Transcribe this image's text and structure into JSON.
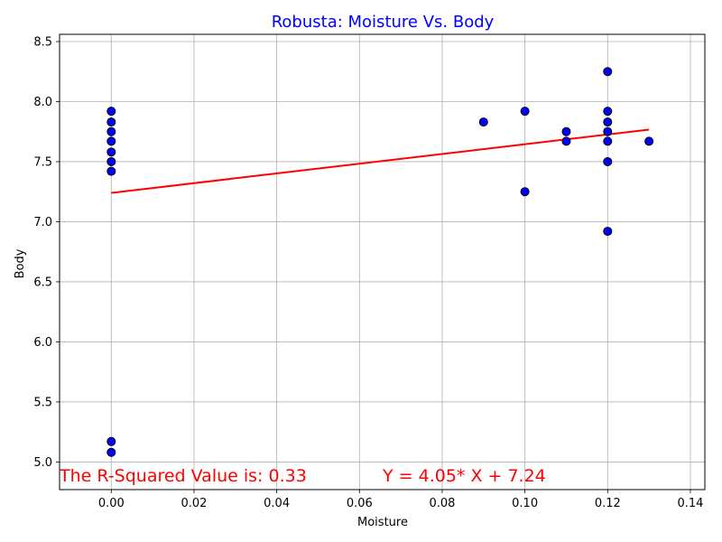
{
  "chart_data": {
    "type": "scatter",
    "title": "Robusta: Moisture Vs. Body",
    "title_color": "#0000ff",
    "xlabel": "Moisture",
    "ylabel": "Body",
    "xlim": [
      -0.0125,
      0.1435
    ],
    "ylim": [
      4.77,
      8.56
    ],
    "x_ticks": [
      0.0,
      0.02,
      0.04,
      0.06,
      0.08,
      0.1,
      0.12,
      0.14
    ],
    "x_tick_labels": [
      "0.00",
      "0.02",
      "0.04",
      "0.06",
      "0.08",
      "0.10",
      "0.12",
      "0.14"
    ],
    "y_ticks": [
      5.0,
      5.5,
      6.0,
      6.5,
      7.0,
      7.5,
      8.0,
      8.5
    ],
    "y_tick_labels": [
      "5.0",
      "5.5",
      "6.0",
      "6.5",
      "7.0",
      "7.5",
      "8.0",
      "8.5"
    ],
    "grid": true,
    "point_color": "#0000ff",
    "point_edge_color": "#000000",
    "points": [
      {
        "x": 0.0,
        "y": 7.92
      },
      {
        "x": 0.0,
        "y": 7.83
      },
      {
        "x": 0.0,
        "y": 7.75
      },
      {
        "x": 0.0,
        "y": 7.67
      },
      {
        "x": 0.0,
        "y": 7.58
      },
      {
        "x": 0.0,
        "y": 7.5
      },
      {
        "x": 0.0,
        "y": 7.42
      },
      {
        "x": 0.0,
        "y": 5.17
      },
      {
        "x": 0.0,
        "y": 5.08
      },
      {
        "x": 0.09,
        "y": 7.83
      },
      {
        "x": 0.1,
        "y": 7.92
      },
      {
        "x": 0.1,
        "y": 7.25
      },
      {
        "x": 0.11,
        "y": 7.75
      },
      {
        "x": 0.11,
        "y": 7.67
      },
      {
        "x": 0.12,
        "y": 8.25
      },
      {
        "x": 0.12,
        "y": 7.92
      },
      {
        "x": 0.12,
        "y": 7.83
      },
      {
        "x": 0.12,
        "y": 7.75
      },
      {
        "x": 0.12,
        "y": 7.67
      },
      {
        "x": 0.12,
        "y": 7.5
      },
      {
        "x": 0.12,
        "y": 6.92
      },
      {
        "x": 0.13,
        "y": 7.67
      }
    ],
    "regression": {
      "slope": 4.05,
      "intercept": 7.24,
      "x_range": [
        0.0,
        0.13
      ],
      "color": "#ff0000"
    },
    "annotations": {
      "r_squared": "The R-Squared Value is: 0.33",
      "equation": "Y = 4.05* X + 7.24",
      "color": "#ff0000"
    }
  }
}
